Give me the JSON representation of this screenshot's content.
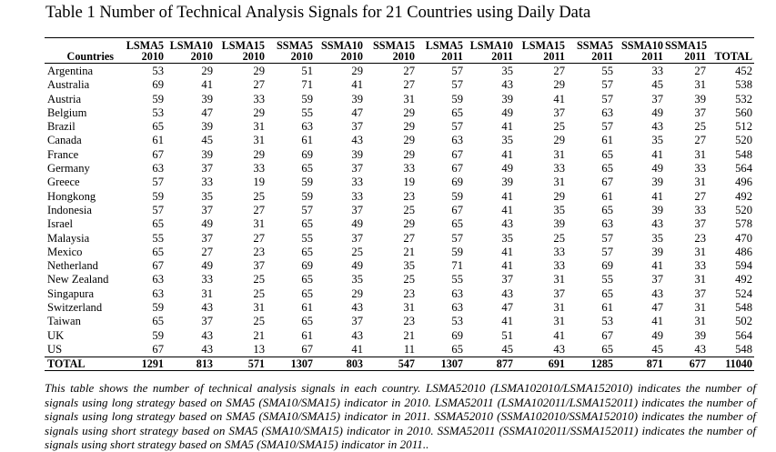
{
  "title": "Table 1 Number of Technical Analysis Signals for 21 Countries using Daily Data",
  "table": {
    "header_top": [
      "",
      "LSMA5",
      "LSMA10",
      "LSMA15",
      "SSMA5",
      "SSMA10",
      "SSMA15",
      "LSMA5",
      "LSMA10",
      "LSMA15",
      "SSMA5",
      "SSMA10",
      "SSMA15",
      ""
    ],
    "header_bottom": [
      "Countries",
      "2010",
      "2010",
      "2010",
      "2010",
      "2010",
      "2010",
      "2011",
      "2011",
      "2011",
      "2011",
      "2011",
      "2011",
      "TOTAL"
    ],
    "rows": [
      [
        "Argentina",
        "53",
        "29",
        "29",
        "51",
        "29",
        "27",
        "57",
        "35",
        "27",
        "55",
        "33",
        "27",
        "452"
      ],
      [
        "Australia",
        "69",
        "41",
        "27",
        "71",
        "41",
        "27",
        "57",
        "43",
        "29",
        "57",
        "45",
        "31",
        "538"
      ],
      [
        "Austria",
        "59",
        "39",
        "33",
        "59",
        "39",
        "31",
        "59",
        "39",
        "41",
        "57",
        "37",
        "39",
        "532"
      ],
      [
        "Belgium",
        "53",
        "47",
        "29",
        "55",
        "47",
        "29",
        "65",
        "49",
        "37",
        "63",
        "49",
        "37",
        "560"
      ],
      [
        "Brazil",
        "65",
        "39",
        "31",
        "63",
        "37",
        "29",
        "57",
        "41",
        "25",
        "57",
        "43",
        "25",
        "512"
      ],
      [
        "Canada",
        "61",
        "45",
        "31",
        "61",
        "43",
        "29",
        "63",
        "35",
        "29",
        "61",
        "35",
        "27",
        "520"
      ],
      [
        "France",
        "67",
        "39",
        "29",
        "69",
        "39",
        "29",
        "67",
        "41",
        "31",
        "65",
        "41",
        "31",
        "548"
      ],
      [
        "Germany",
        "63",
        "37",
        "33",
        "65",
        "37",
        "33",
        "67",
        "49",
        "33",
        "65",
        "49",
        "33",
        "564"
      ],
      [
        "Greece",
        "57",
        "33",
        "19",
        "59",
        "33",
        "19",
        "69",
        "39",
        "31",
        "67",
        "39",
        "31",
        "496"
      ],
      [
        "Hongkong",
        "59",
        "35",
        "25",
        "59",
        "33",
        "23",
        "59",
        "41",
        "29",
        "61",
        "41",
        "27",
        "492"
      ],
      [
        "Indonesia",
        "57",
        "37",
        "27",
        "57",
        "37",
        "25",
        "67",
        "41",
        "35",
        "65",
        "39",
        "33",
        "520"
      ],
      [
        "Israel",
        "65",
        "49",
        "31",
        "65",
        "49",
        "29",
        "65",
        "43",
        "39",
        "63",
        "43",
        "37",
        "578"
      ],
      [
        "Malaysia",
        "55",
        "37",
        "27",
        "55",
        "37",
        "27",
        "57",
        "35",
        "25",
        "57",
        "35",
        "23",
        "470"
      ],
      [
        "Mexico",
        "65",
        "27",
        "23",
        "65",
        "25",
        "21",
        "59",
        "41",
        "33",
        "57",
        "39",
        "31",
        "486"
      ],
      [
        "Netherland",
        "67",
        "49",
        "37",
        "69",
        "49",
        "35",
        "71",
        "41",
        "33",
        "69",
        "41",
        "33",
        "594"
      ],
      [
        "New Zealand",
        "63",
        "33",
        "25",
        "65",
        "35",
        "25",
        "55",
        "37",
        "31",
        "55",
        "37",
        "31",
        "492"
      ],
      [
        "Singapura",
        "63",
        "31",
        "25",
        "65",
        "29",
        "23",
        "63",
        "43",
        "37",
        "65",
        "43",
        "37",
        "524"
      ],
      [
        "Switzerland",
        "59",
        "43",
        "31",
        "61",
        "43",
        "31",
        "63",
        "47",
        "31",
        "61",
        "47",
        "31",
        "548"
      ],
      [
        "Taiwan",
        "65",
        "37",
        "25",
        "65",
        "37",
        "23",
        "53",
        "41",
        "31",
        "53",
        "41",
        "31",
        "502"
      ],
      [
        "UK",
        "59",
        "43",
        "21",
        "61",
        "43",
        "21",
        "69",
        "51",
        "41",
        "67",
        "49",
        "39",
        "564"
      ],
      [
        "US",
        "67",
        "43",
        "13",
        "67",
        "41",
        "11",
        "65",
        "45",
        "43",
        "65",
        "45",
        "43",
        "548"
      ]
    ],
    "total_row": [
      "TOTAL",
      "1291",
      "813",
      "571",
      "1307",
      "803",
      "547",
      "1307",
      "877",
      "691",
      "1285",
      "871",
      "677",
      "11040"
    ]
  },
  "note": "This table shows the number of technical analysis signals in each country. LSMA52010 (LSMA102010/LSMA152010) indicates the number of signals using long strategy based on SMA5 (SMA10/SMA15) indicator in 2010. LSMA52011 (LSMA102011/LSMA152011) indicates the number of signals using long strategy based on SMA5 (SMA10/SMA15) indicator in 2011. SSMA52010 (SSMA102010/SSMA152010) indicates the number of signals using short strategy based on SMA5 (SMA10/SMA15) indicator in 2010. SSMA52011 (SSMA102011/SSMA152011) indicates the number of signals using short strategy based on SMA5 (SMA10/SMA15) indicator in 2011.."
}
